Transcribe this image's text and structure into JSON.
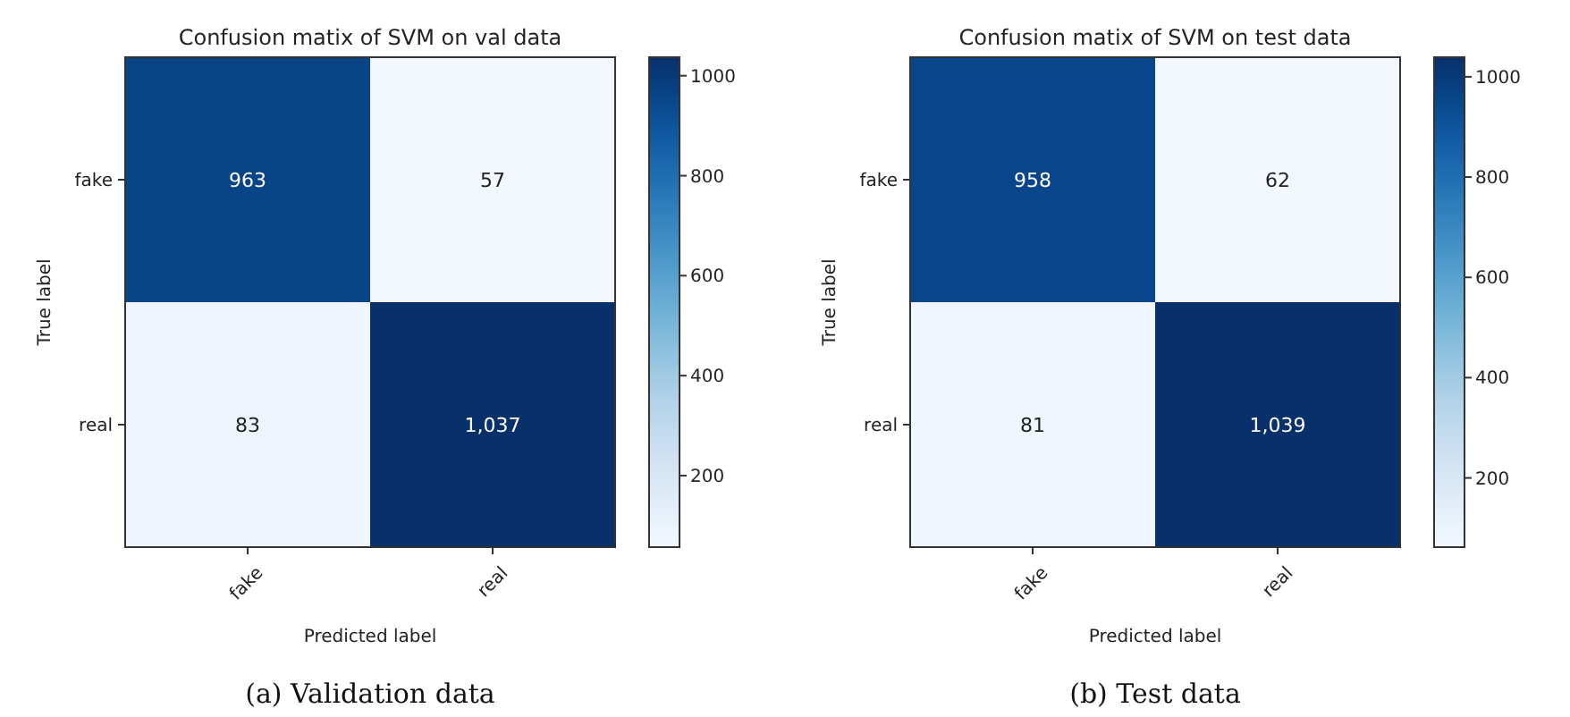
{
  "chart_data": [
    {
      "type": "heatmap",
      "title": "Confusion matix of SVM on val data",
      "xlabel": "Predicted label",
      "ylabel": "True label",
      "categories": [
        "fake",
        "real"
      ],
      "y_categories": [
        "fake",
        "real"
      ],
      "cells": [
        [
          963,
          57
        ],
        [
          83,
          1037
        ]
      ],
      "cell_labels": [
        [
          "963",
          "57"
        ],
        [
          "83",
          "1,037"
        ]
      ],
      "clim": [
        57,
        1037
      ],
      "cticks": [
        200,
        400,
        600,
        800,
        1000
      ],
      "annotations": [
        "(a) Validation data"
      ]
    },
    {
      "type": "heatmap",
      "title": "Confusion matix of SVM on test data",
      "xlabel": "Predicted label",
      "ylabel": "True label",
      "categories": [
        "fake",
        "real"
      ],
      "y_categories": [
        "fake",
        "real"
      ],
      "cells": [
        [
          958,
          62
        ],
        [
          81,
          1039
        ]
      ],
      "cell_labels": [
        [
          "958",
          "62"
        ],
        [
          "81",
          "1,039"
        ]
      ],
      "clim": [
        62,
        1039
      ],
      "cticks": [
        200,
        400,
        600,
        800,
        1000
      ],
      "annotations": [
        "(b) Test data"
      ]
    }
  ]
}
